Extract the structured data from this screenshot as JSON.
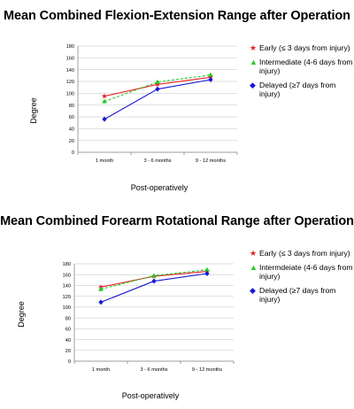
{
  "chart_data": [
    {
      "type": "line",
      "title": "Mean Combined Flexion-Extension Range after Operation",
      "xlabel": "Post-operatively",
      "ylabel": "Degree",
      "categories": [
        "1 month",
        "3 - 6 months",
        "9 - 12 months"
      ],
      "ylim": [
        0,
        180
      ],
      "yticks": [
        0,
        20,
        40,
        60,
        80,
        100,
        120,
        140,
        160,
        180
      ],
      "grid": true,
      "legend_position": "right",
      "series": [
        {
          "name": "Early (≤ 3 days from injury)",
          "values": [
            95,
            115,
            127
          ],
          "color": "#e8202a",
          "marker": "star",
          "dashed": false,
          "icon": "star-icon",
          "symbol": "★"
        },
        {
          "name": "Intermediate (4-6 days from injury)",
          "values": [
            86,
            119,
            131
          ],
          "color": "#22cc22",
          "marker": "triangle",
          "dashed": true,
          "icon": "triangle-icon",
          "symbol": "▲"
        },
        {
          "name": "Delayed (≥7 days from injury)",
          "values": [
            56,
            107,
            123
          ],
          "color": "#1515d6",
          "marker": "diamond",
          "dashed": false,
          "icon": "diamond-icon",
          "symbol": "◆"
        }
      ]
    },
    {
      "type": "line",
      "title": "Mean Combined Forearm Rotational Range after Operation",
      "xlabel": "Post-operatively",
      "ylabel": "Degree",
      "categories": [
        "1 month",
        "3 - 6 months",
        "9 - 12 months"
      ],
      "ylim": [
        0,
        180
      ],
      "yticks": [
        0,
        20,
        40,
        60,
        80,
        100,
        120,
        140,
        160,
        180
      ],
      "grid": true,
      "legend_position": "right",
      "series": [
        {
          "name": "Early (≤ 3 days from injury)",
          "values": [
            137,
            157,
            166
          ],
          "color": "#e8202a",
          "marker": "star",
          "dashed": false,
          "icon": "star-icon",
          "symbol": "★"
        },
        {
          "name": "Intermdeiate (4-6 days from injury)",
          "values": [
            133,
            158,
            169
          ],
          "color": "#22cc22",
          "marker": "triangle",
          "dashed": true,
          "icon": "triangle-icon",
          "symbol": "▲"
        },
        {
          "name": "Delayed (≥7 days from injury)",
          "values": [
            109,
            148,
            162
          ],
          "color": "#1515d6",
          "marker": "diamond",
          "dashed": false,
          "icon": "diamond-icon",
          "symbol": "◆"
        }
      ]
    }
  ]
}
